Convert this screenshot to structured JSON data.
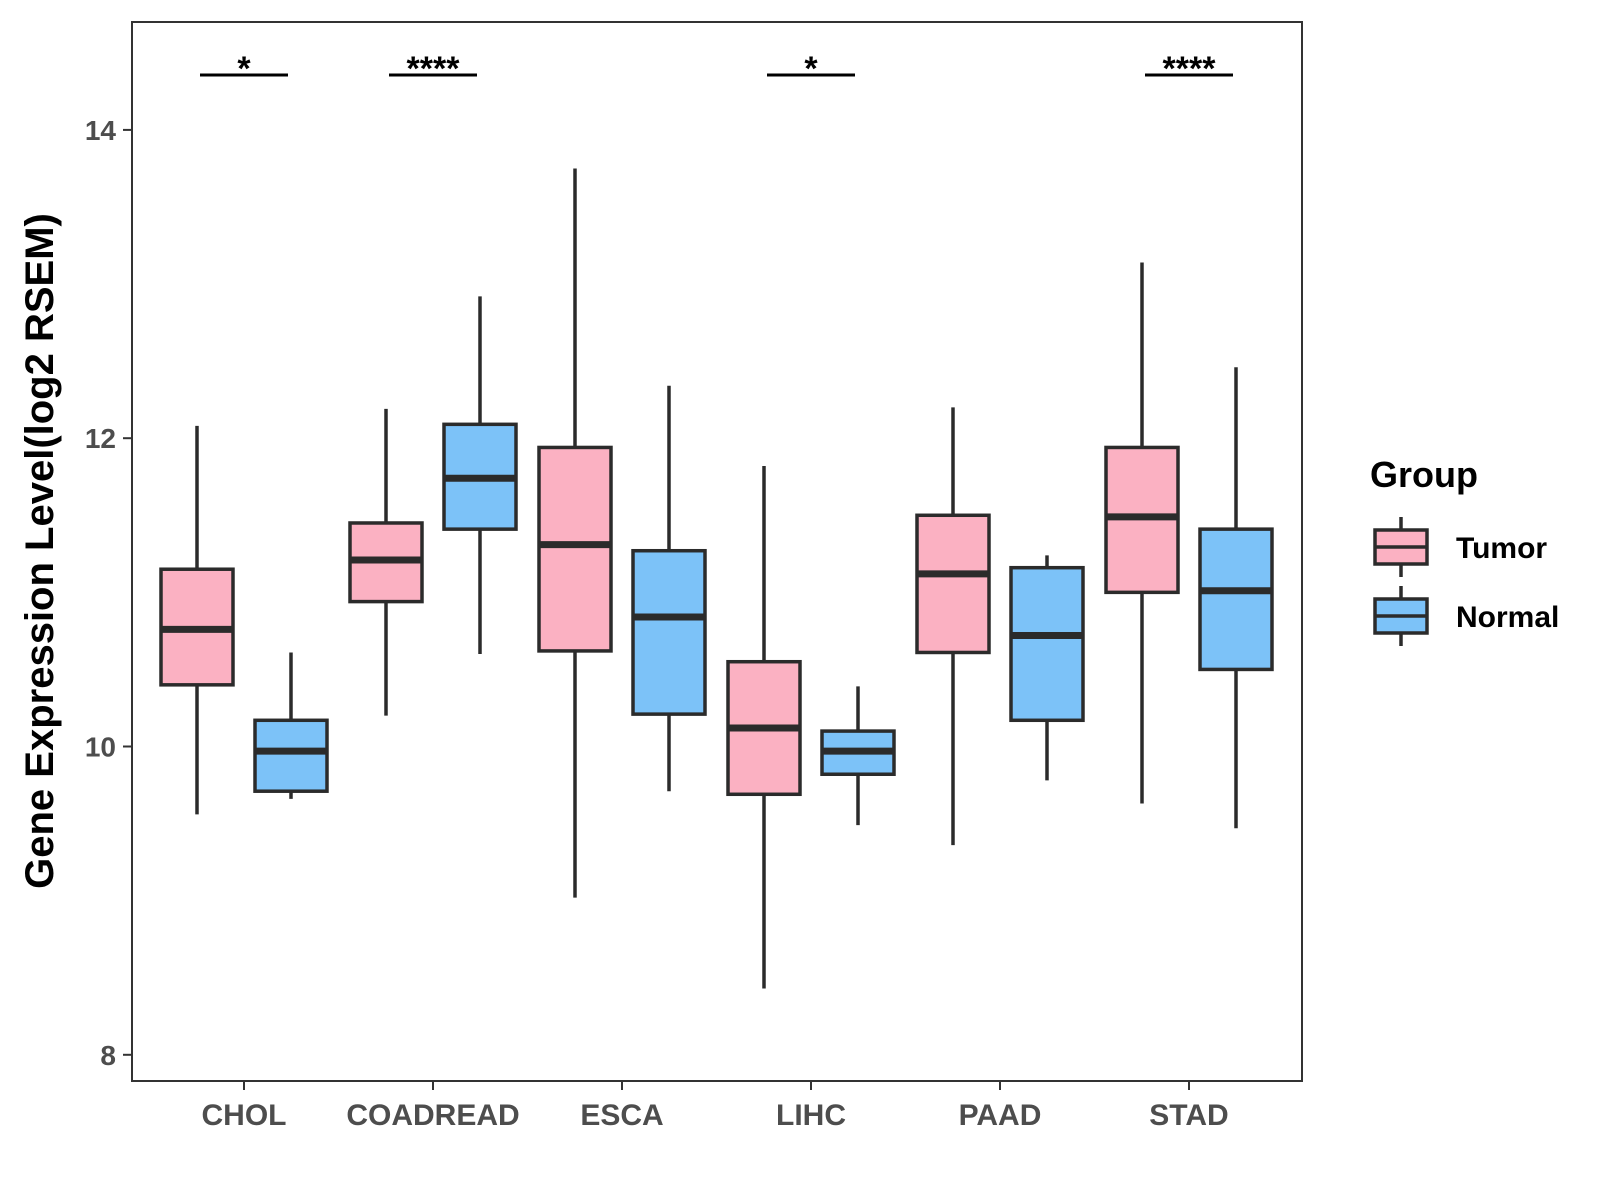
{
  "chart_data": {
    "type": "boxplot",
    "title": "",
    "xlabel": "",
    "ylabel": "Gene Expression Level(log2 RSEM)",
    "ylim": [
      7.83,
      14.7
    ],
    "yticks": [
      8,
      10,
      12,
      14
    ],
    "categories": [
      "CHOL",
      "COADREAD",
      "ESCA",
      "LIHC",
      "PAAD",
      "STAD"
    ],
    "legend": {
      "title": "Group",
      "position": "right",
      "entries": [
        "Tumor",
        "Normal"
      ]
    },
    "colors": {
      "Tumor": "#fbb1c2",
      "Normal": "#7cc2f8",
      "outline": "#2b2b2b"
    },
    "series": [
      {
        "name": "Tumor",
        "boxes": [
          {
            "category": "CHOL",
            "min": 9.56,
            "q1": 10.4,
            "median": 10.76,
            "q3": 11.15,
            "max": 12.08
          },
          {
            "category": "COADREAD",
            "min": 10.2,
            "q1": 10.94,
            "median": 11.21,
            "q3": 11.45,
            "max": 12.19
          },
          {
            "category": "ESCA",
            "min": 9.02,
            "q1": 10.62,
            "median": 11.31,
            "q3": 11.94,
            "max": 13.75
          },
          {
            "category": "LIHC",
            "min": 8.43,
            "q1": 9.69,
            "median": 10.12,
            "q3": 10.55,
            "max": 11.82
          },
          {
            "category": "PAAD",
            "min": 9.36,
            "q1": 10.61,
            "median": 11.12,
            "q3": 11.5,
            "max": 12.2
          },
          {
            "category": "STAD",
            "min": 9.63,
            "q1": 11.0,
            "median": 11.49,
            "q3": 11.94,
            "max": 13.14
          }
        ]
      },
      {
        "name": "Normal",
        "boxes": [
          {
            "category": "CHOL",
            "min": 9.66,
            "q1": 9.71,
            "median": 9.97,
            "q3": 10.17,
            "max": 10.61
          },
          {
            "category": "COADREAD",
            "min": 10.6,
            "q1": 11.41,
            "median": 11.74,
            "q3": 12.09,
            "max": 12.92
          },
          {
            "category": "ESCA",
            "min": 9.71,
            "q1": 10.21,
            "median": 10.84,
            "q3": 11.27,
            "max": 12.34
          },
          {
            "category": "LIHC",
            "min": 9.49,
            "q1": 9.82,
            "median": 9.97,
            "q3": 10.1,
            "max": 10.39
          },
          {
            "category": "PAAD",
            "min": 9.78,
            "q1": 10.17,
            "median": 10.72,
            "q3": 11.16,
            "max": 11.24
          },
          {
            "category": "STAD",
            "min": 9.47,
            "q1": 10.5,
            "median": 11.01,
            "q3": 11.41,
            "max": 12.46
          }
        ]
      }
    ],
    "significance": [
      {
        "category": "CHOL",
        "label": "*"
      },
      {
        "category": "COADREAD",
        "label": "****"
      },
      {
        "category": "LIHC",
        "label": "*"
      },
      {
        "category": "STAD",
        "label": "****"
      }
    ]
  }
}
